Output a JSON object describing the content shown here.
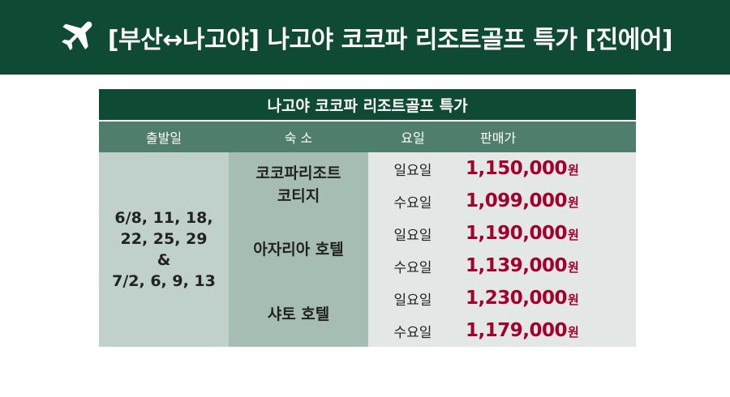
{
  "banner": {
    "title": "[부산↔나고야] 나고야 코코파 리조트골프 특가 [진에어]",
    "icon": "airplane-icon"
  },
  "table": {
    "title": "나고야 코코파 리조트골프 특가",
    "headers": {
      "dates": "출발일",
      "hotel": "숙 소",
      "day": "요일",
      "price": "판매가"
    },
    "dates": {
      "line1": "6/8, 11, 18,",
      "line2": "22, 25, 29",
      "line3": "&",
      "line4": "7/2, 6, 9, 13"
    },
    "currency": "원",
    "hotels": [
      {
        "name_line1": "코코파리조트",
        "name_line2": "코티지",
        "rows": [
          {
            "day": "일요일",
            "price": "1,150,000"
          },
          {
            "day": "수요일",
            "price": "1,099,000"
          }
        ]
      },
      {
        "name_line1": "아자리아 호텔",
        "name_line2": "",
        "rows": [
          {
            "day": "일요일",
            "price": "1,190,000"
          },
          {
            "day": "수요일",
            "price": "1,139,000"
          }
        ]
      },
      {
        "name_line1": "샤토 호텔",
        "name_line2": "",
        "rows": [
          {
            "day": "일요일",
            "price": "1,230,000"
          },
          {
            "day": "수요일",
            "price": "1,179,000"
          }
        ]
      }
    ]
  },
  "colors": {
    "dark_green": "#0e4a34",
    "header_green": "#4f7e6c",
    "dates_bg": "#c0d1cb",
    "hotel_bg": "#a6bdb4",
    "row_bg": "#e3e8e6",
    "price_red": "#a3002c"
  }
}
